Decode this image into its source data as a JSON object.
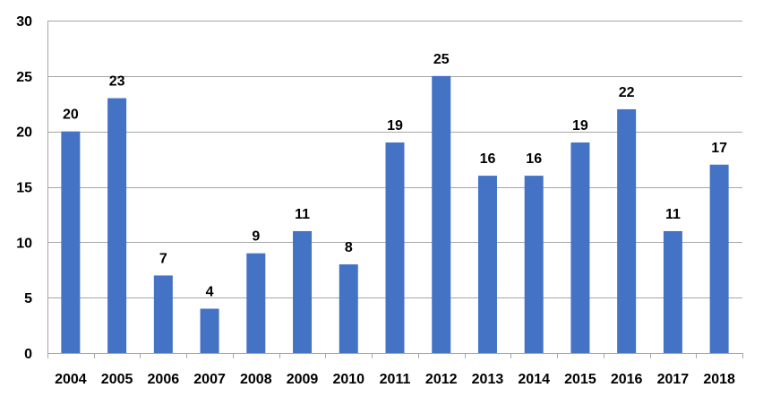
{
  "chart_data": {
    "type": "bar",
    "title": "",
    "xlabel": "",
    "ylabel": "",
    "categories": [
      "2004",
      "2005",
      "2006",
      "2007",
      "2008",
      "2009",
      "2010",
      "2011",
      "2012",
      "2013",
      "2014",
      "2015",
      "2016",
      "2017",
      "2018"
    ],
    "values": [
      20,
      23,
      7,
      4,
      9,
      11,
      8,
      19,
      25,
      16,
      16,
      19,
      22,
      11,
      17
    ],
    "ylim": [
      0,
      30
    ],
    "yticks": [
      0,
      5,
      10,
      15,
      20,
      25,
      30
    ],
    "grid": true,
    "legend": "none",
    "data_labels": true,
    "colors": {
      "bar": "#4472C4",
      "grid": "#A6A6A6",
      "axis": "#A6A6A6",
      "text": "#000000"
    }
  }
}
